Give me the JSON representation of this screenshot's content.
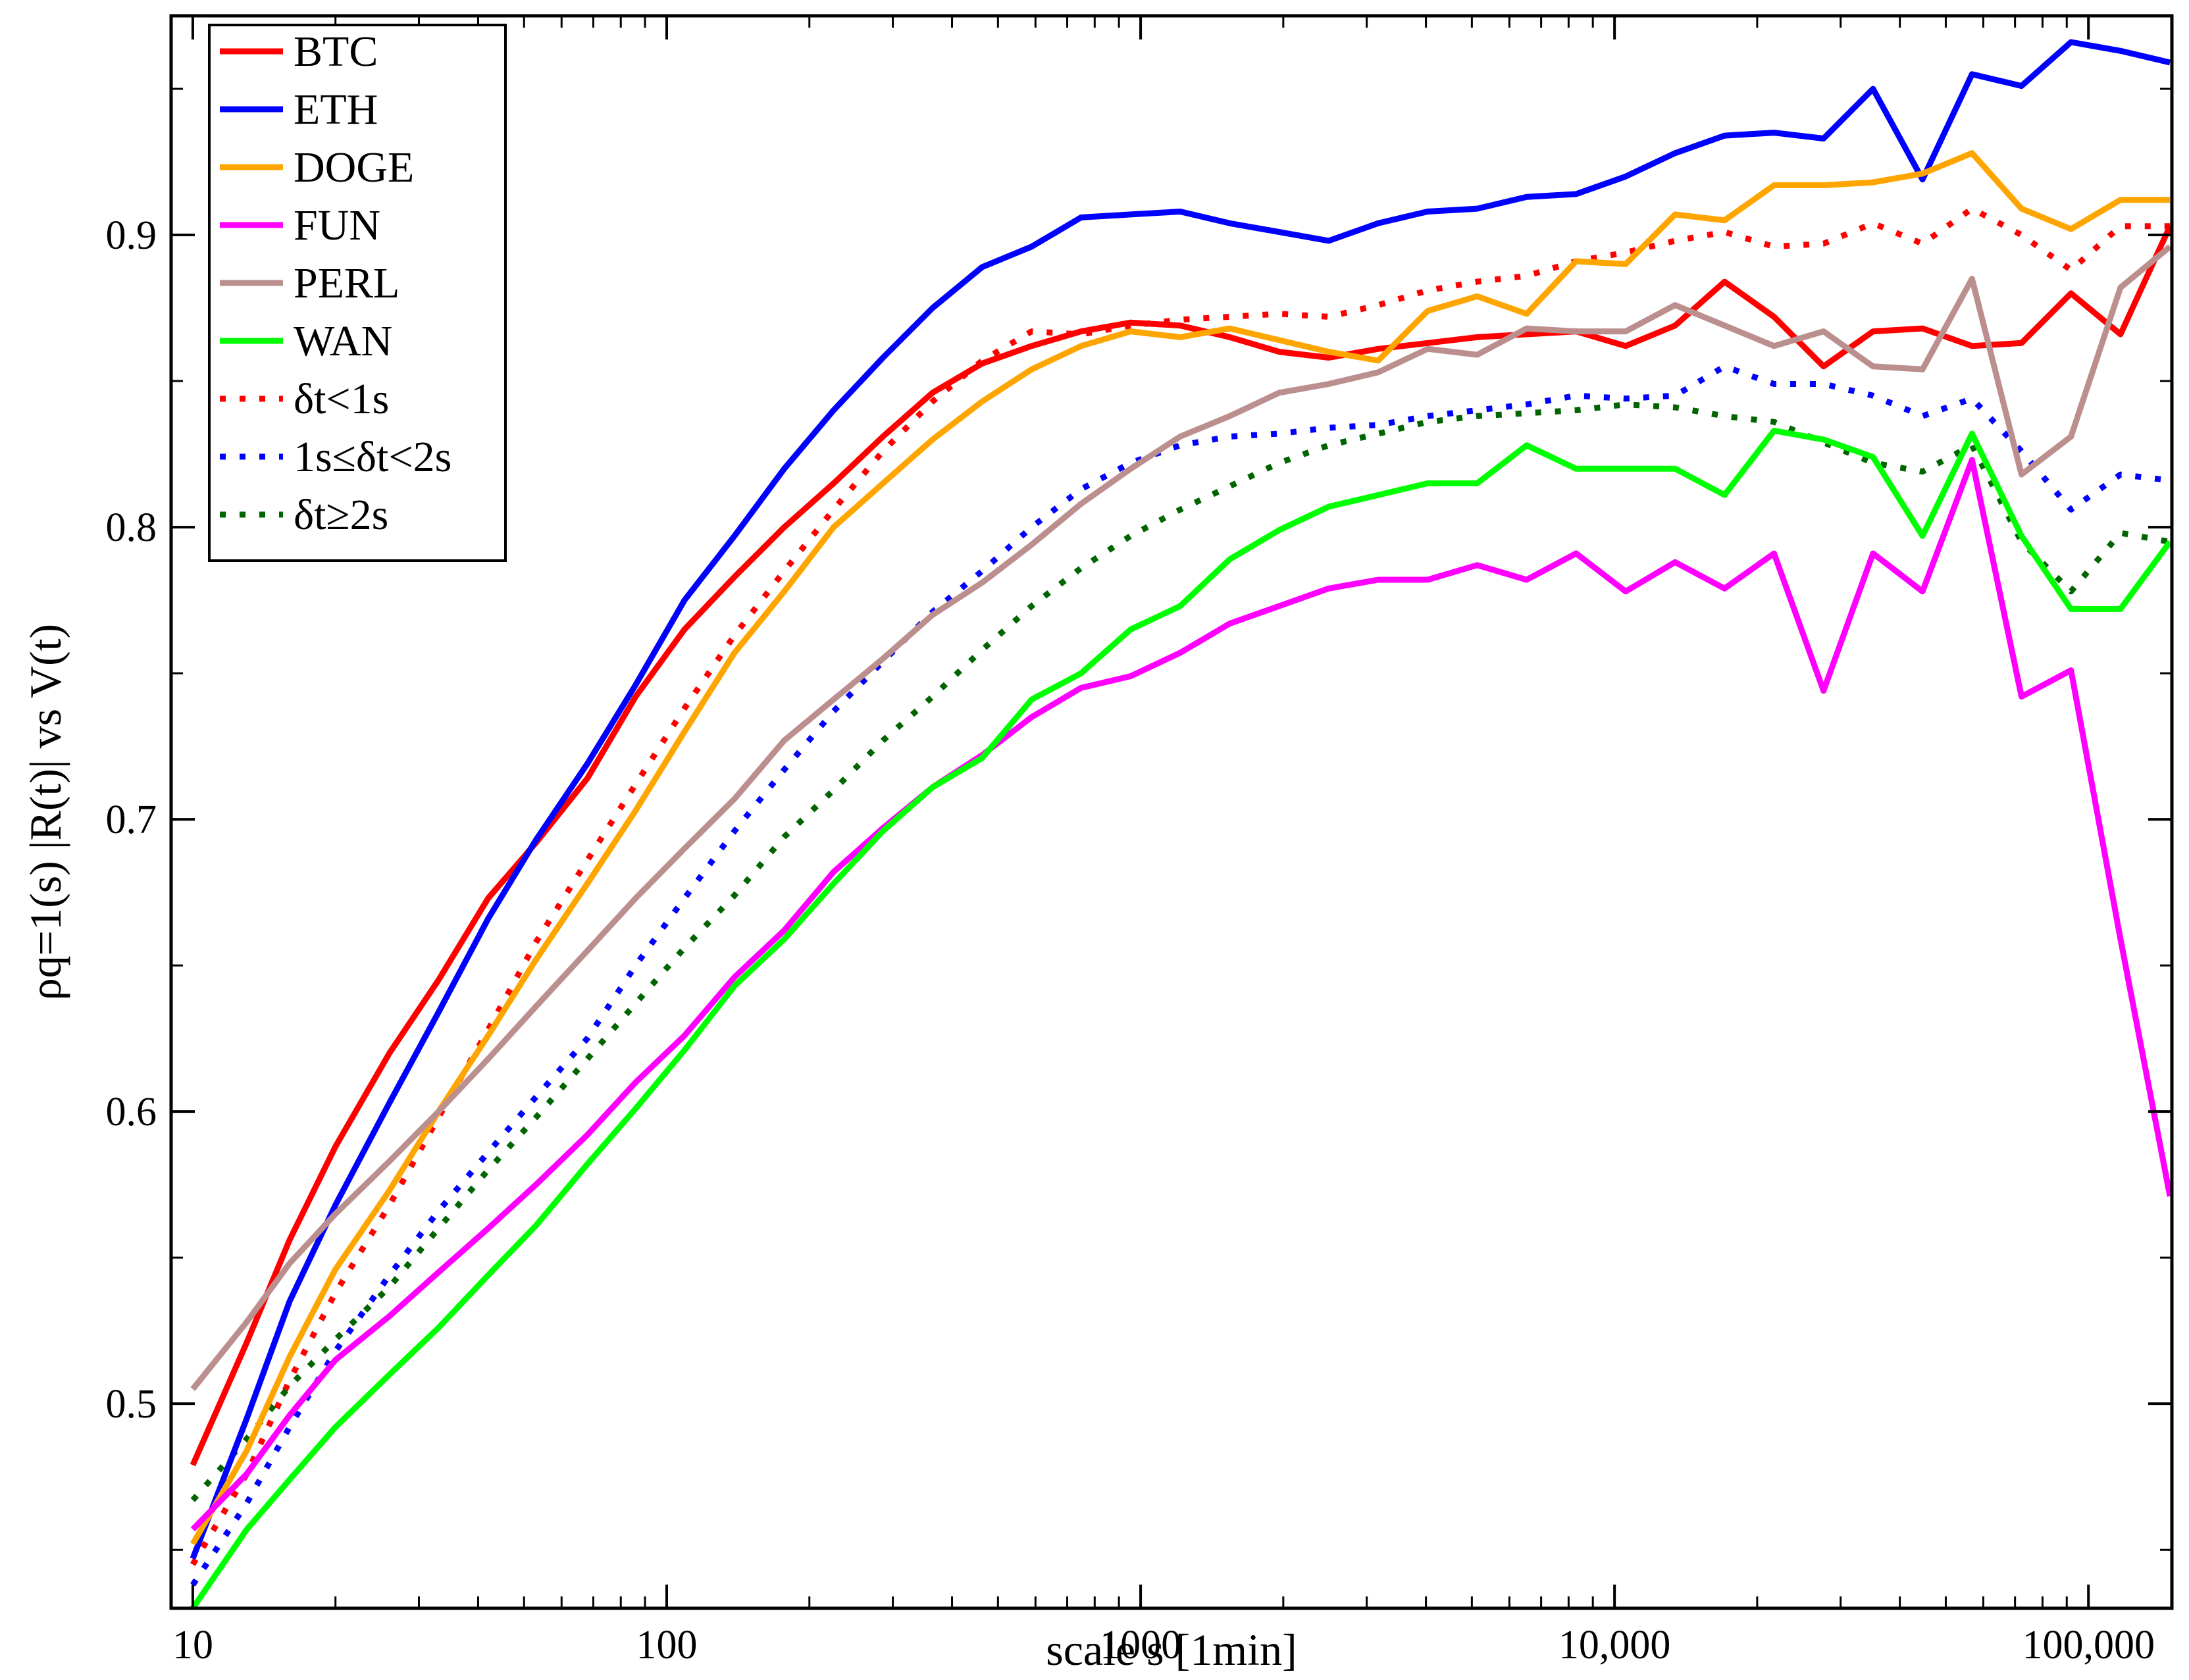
{
  "chart_data": {
    "type": "line",
    "xlabel": "scale s [1min]",
    "ylabel": "ρq=1(s) |R(t)| vs V(t)",
    "xscale": "log",
    "xlim": [
      9,
      150000
    ],
    "ylim": [
      0.43,
      0.975
    ],
    "grid": false,
    "legend_position": "top-left",
    "x_ticks": [
      10,
      100,
      1000,
      10000,
      100000
    ],
    "x_tick_labels": [
      "10",
      "100",
      "1000",
      "10,000",
      "100,000"
    ],
    "y_ticks": [
      0.5,
      0.6,
      0.7,
      0.8,
      0.9
    ],
    "y_tick_labels": [
      "0.5",
      "0.6",
      "0.7",
      "0.8",
      "0.9"
    ],
    "x": [
      10,
      13,
      16,
      20,
      26,
      33,
      42,
      53,
      68,
      86,
      109,
      139,
      177,
      225,
      286,
      364,
      463,
      589,
      749,
      953,
      1212,
      1542,
      1961,
      2494,
      3172,
      4034,
      5130,
      6525,
      8298,
      10553,
      13421,
      17069,
      21709,
      27610,
      35114,
      44658,
      56796,
      72234,
      91868,
      116838,
      148596
    ],
    "series": [
      {
        "name": "BTC",
        "color": "#ff0000",
        "style": "solid",
        "values": [
          0.479,
          0.521,
          0.556,
          0.588,
          0.62,
          0.645,
          0.673,
          0.692,
          0.714,
          0.742,
          0.765,
          0.783,
          0.8,
          0.815,
          0.831,
          0.846,
          0.856,
          0.862,
          0.867,
          0.87,
          0.869,
          0.865,
          0.86,
          0.858,
          0.861,
          0.863,
          0.865,
          0.866,
          0.867,
          0.862,
          0.869,
          0.884,
          0.872,
          0.855,
          0.867,
          0.868,
          0.862,
          0.863,
          0.88,
          0.866,
          0.903
        ]
      },
      {
        "name": "ETH",
        "color": "#0000ff",
        "style": "solid",
        "values": [
          0.447,
          0.495,
          0.535,
          0.568,
          0.603,
          0.634,
          0.666,
          0.693,
          0.719,
          0.746,
          0.775,
          0.797,
          0.82,
          0.84,
          0.858,
          0.875,
          0.889,
          0.896,
          0.906,
          0.907,
          0.908,
          0.904,
          0.901,
          0.898,
          0.904,
          0.908,
          0.909,
          0.913,
          0.914,
          0.92,
          0.928,
          0.934,
          0.935,
          0.933,
          0.95,
          0.919,
          0.955,
          0.951,
          0.966,
          0.963,
          0.959
        ]
      },
      {
        "name": "DOGE",
        "color": "#ffa500",
        "style": "solid",
        "values": [
          0.452,
          0.484,
          0.516,
          0.546,
          0.573,
          0.6,
          0.626,
          0.652,
          0.678,
          0.703,
          0.73,
          0.757,
          0.778,
          0.8,
          0.815,
          0.83,
          0.843,
          0.854,
          0.862,
          0.867,
          0.865,
          0.868,
          0.864,
          0.86,
          0.857,
          0.874,
          0.879,
          0.873,
          0.891,
          0.89,
          0.907,
          0.905,
          0.917,
          0.917,
          0.918,
          0.921,
          0.928,
          0.909,
          0.902,
          0.912,
          0.912
        ]
      },
      {
        "name": "FUN",
        "color": "#ff00ff",
        "style": "solid",
        "values": [
          0.457,
          0.476,
          0.496,
          0.515,
          0.53,
          0.545,
          0.56,
          0.575,
          0.592,
          0.61,
          0.626,
          0.646,
          0.662,
          0.682,
          0.697,
          0.711,
          0.722,
          0.735,
          0.745,
          0.749,
          0.757,
          0.767,
          0.773,
          0.779,
          0.782,
          0.782,
          0.787,
          0.782,
          0.791,
          0.778,
          0.788,
          0.779,
          0.791,
          0.744,
          0.791,
          0.778,
          0.823,
          0.742,
          0.751,
          0.659,
          0.571
        ]
      },
      {
        "name": "PERL",
        "color": "#bc8f8f",
        "style": "solid",
        "values": [
          0.505,
          0.528,
          0.548,
          0.565,
          0.583,
          0.6,
          0.618,
          0.636,
          0.655,
          0.673,
          0.69,
          0.707,
          0.727,
          0.741,
          0.755,
          0.77,
          0.781,
          0.794,
          0.808,
          0.82,
          0.831,
          0.838,
          0.846,
          0.849,
          0.853,
          0.861,
          0.859,
          0.868,
          0.867,
          0.867,
          0.876,
          0.869,
          0.862,
          0.867,
          0.855,
          0.854,
          0.885,
          0.818,
          0.831,
          0.882,
          0.896
        ]
      },
      {
        "name": "WAN",
        "color": "#00ff00",
        "style": "solid",
        "values": [
          0.43,
          0.457,
          0.474,
          0.492,
          0.51,
          0.526,
          0.544,
          0.561,
          0.582,
          0.601,
          0.621,
          0.643,
          0.659,
          0.678,
          0.696,
          0.711,
          0.721,
          0.741,
          0.75,
          0.765,
          0.773,
          0.789,
          0.799,
          0.807,
          0.811,
          0.815,
          0.815,
          0.828,
          0.82,
          0.82,
          0.82,
          0.811,
          0.833,
          0.83,
          0.824,
          0.797,
          0.832,
          0.797,
          0.772,
          0.772,
          0.795
        ]
      },
      {
        "name": "δt<1s",
        "color": "#ff0000",
        "style": "dotted",
        "values": [
          0.445,
          0.476,
          0.508,
          0.538,
          0.568,
          0.598,
          0.628,
          0.658,
          0.686,
          0.712,
          0.738,
          0.763,
          0.785,
          0.806,
          0.826,
          0.843,
          0.857,
          0.867,
          0.866,
          0.869,
          0.871,
          0.872,
          0.873,
          0.872,
          0.876,
          0.881,
          0.884,
          0.886,
          0.891,
          0.894,
          0.898,
          0.901,
          0.896,
          0.897,
          0.904,
          0.897,
          0.909,
          0.9,
          0.888,
          0.903,
          0.903
        ]
      },
      {
        "name": "1s≤δt<2s",
        "color": "#0000ff",
        "style": "dotted",
        "values": [
          0.438,
          0.466,
          0.492,
          0.518,
          0.544,
          0.566,
          0.586,
          0.605,
          0.625,
          0.65,
          0.673,
          0.696,
          0.717,
          0.737,
          0.754,
          0.771,
          0.785,
          0.8,
          0.813,
          0.822,
          0.828,
          0.831,
          0.832,
          0.834,
          0.835,
          0.838,
          0.84,
          0.842,
          0.845,
          0.844,
          0.845,
          0.855,
          0.849,
          0.849,
          0.845,
          0.838,
          0.844,
          0.826,
          0.806,
          0.818,
          0.816
        ]
      },
      {
        "name": "δt≥2s",
        "color": "#006400",
        "style": "dotted",
        "values": [
          0.467,
          0.488,
          0.506,
          0.522,
          0.54,
          0.56,
          0.58,
          0.598,
          0.618,
          0.637,
          0.656,
          0.674,
          0.694,
          0.71,
          0.727,
          0.742,
          0.758,
          0.773,
          0.786,
          0.797,
          0.806,
          0.814,
          0.822,
          0.828,
          0.832,
          0.836,
          0.838,
          0.839,
          0.84,
          0.842,
          0.841,
          0.838,
          0.836,
          0.829,
          0.822,
          0.819,
          0.828,
          0.795,
          0.778,
          0.798,
          0.795
        ]
      }
    ]
  }
}
